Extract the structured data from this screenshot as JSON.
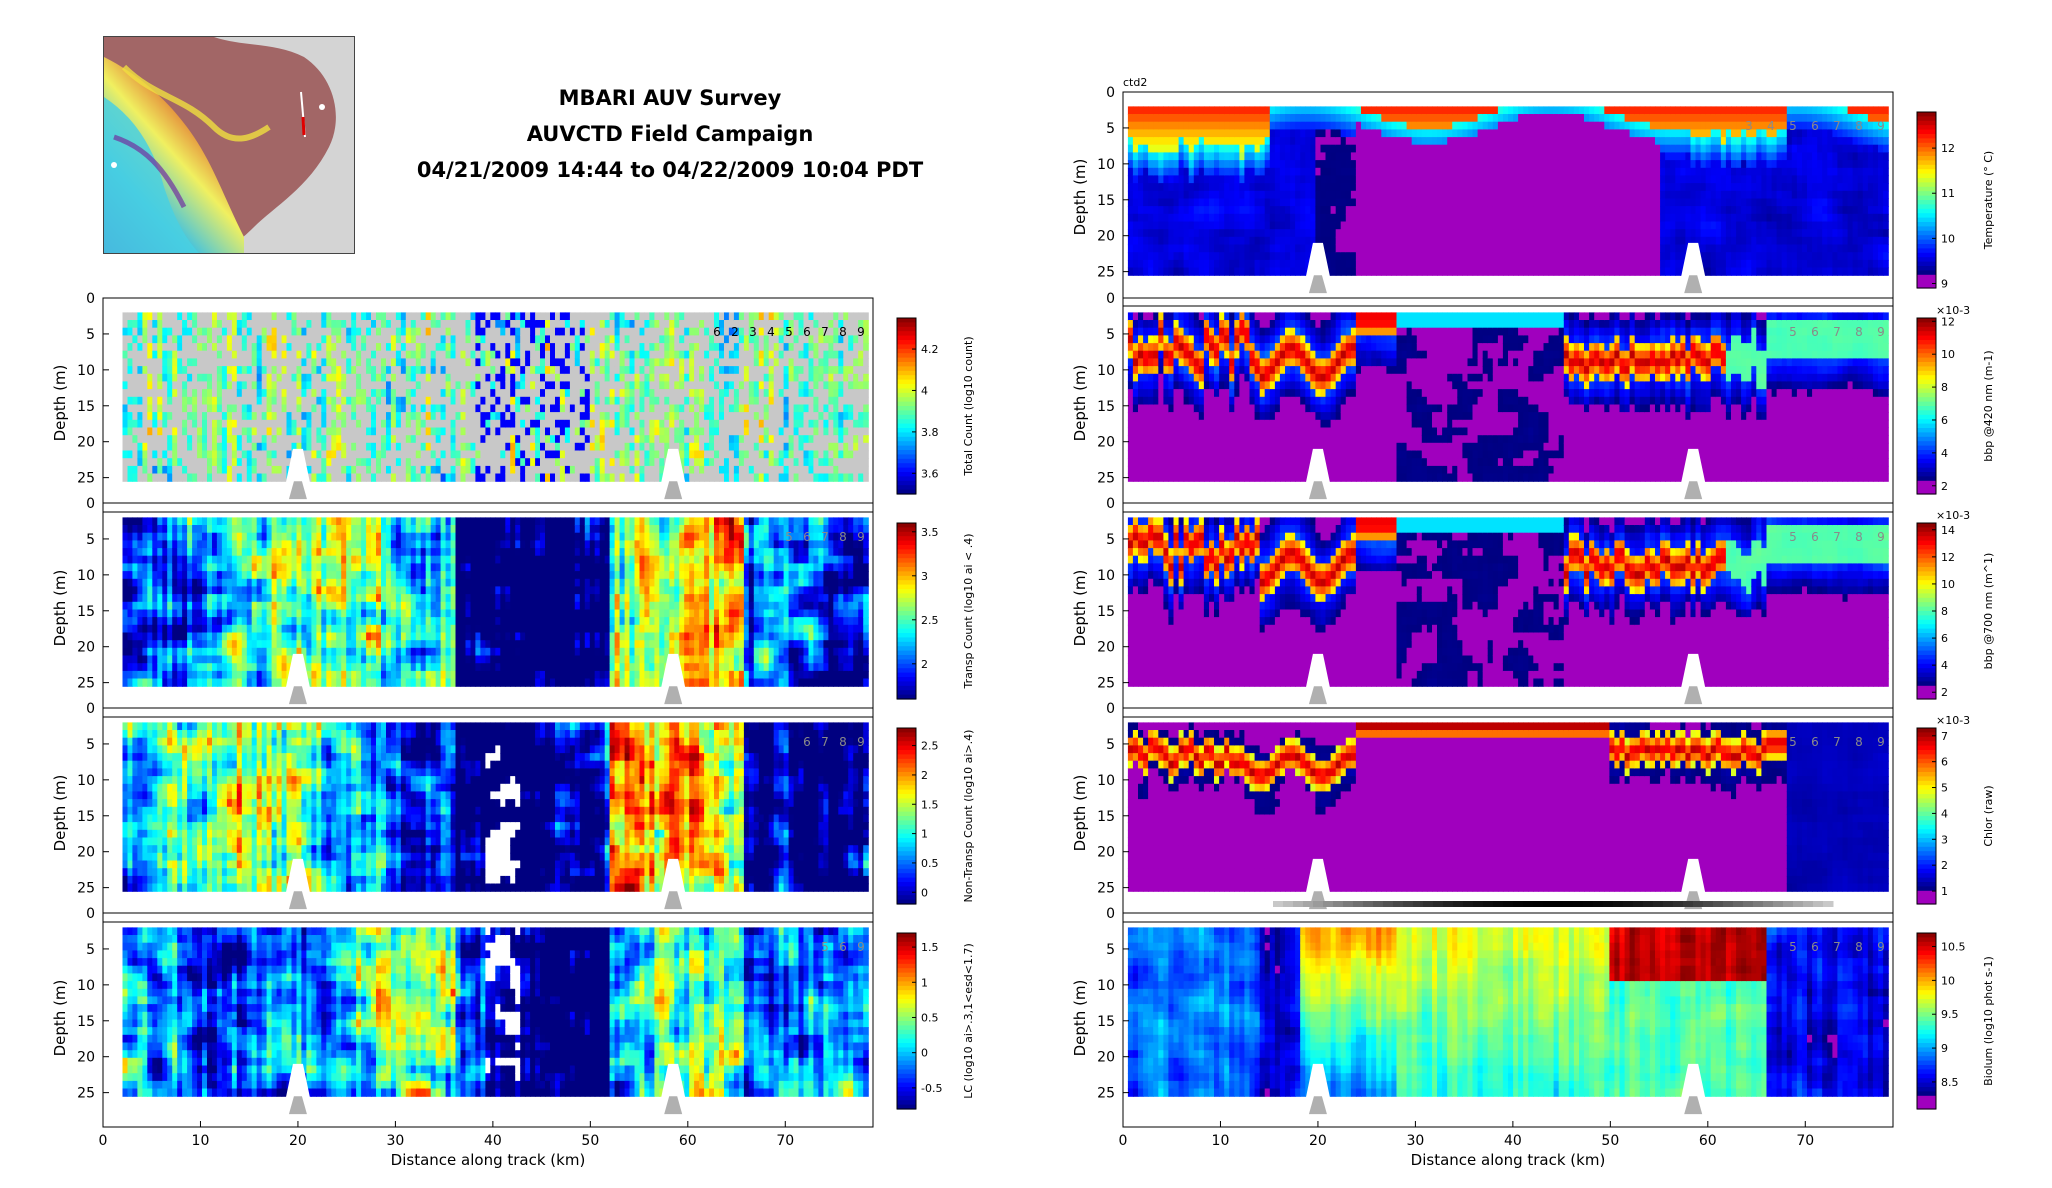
{
  "title": {
    "line1": "MBARI AUV Survey",
    "line2": "AUVCTD Field Campaign",
    "line3": "04/21/2009 14:44 to 04/22/2009 10:04 PDT"
  },
  "inset_map": {
    "present": true,
    "colormap": "terrain/bathymetry relief",
    "track_color": "#e00000"
  },
  "colors": {
    "section_bg": "#ffffff",
    "seafloor": "#b0b0b0",
    "grid_gray": "#bdbdbd"
  },
  "chart_data": [
    {
      "id": "total_count",
      "type": "heatmap",
      "column": "left",
      "row": 1,
      "xlabel": "",
      "ylabel": "Depth (m)",
      "xlim": [
        0,
        79
      ],
      "ylim": [
        27,
        0
      ],
      "yticks": [
        0,
        5,
        10,
        15,
        20,
        25
      ],
      "xticks": [],
      "colorbar": {
        "label": "Total Count (log10 count)",
        "ticks": [
          "3.6",
          "3.8",
          "4",
          "4.2"
        ],
        "range": [
          3.5,
          4.35
        ],
        "scale": "",
        "colormap": "jet"
      },
      "markers": [
        "6",
        "2",
        "3",
        "4",
        "5",
        "6",
        "7",
        "8",
        "9"
      ],
      "pattern": "sparse",
      "seed": 11
    },
    {
      "id": "transp_count",
      "type": "heatmap",
      "column": "left",
      "row": 2,
      "xlabel": "",
      "ylabel": "Depth (m)",
      "xlim": [
        0,
        79
      ],
      "ylim": [
        27,
        0
      ],
      "yticks": [
        0,
        5,
        10,
        15,
        20,
        25
      ],
      "xticks": [],
      "colorbar": {
        "label": "Transp Count (log10 ai < .4)",
        "ticks": [
          "2",
          "2.5",
          "3",
          "3.5"
        ],
        "range": [
          1.6,
          3.6
        ],
        "scale": "",
        "colormap": "jet"
      },
      "markers": [
        "5",
        "6",
        "7",
        "8",
        "9"
      ],
      "pattern": "patchy",
      "seed": 23
    },
    {
      "id": "nontransp_count",
      "type": "heatmap",
      "column": "left",
      "row": 3,
      "xlabel": "",
      "ylabel": "Depth (m)",
      "xlim": [
        0,
        79
      ],
      "ylim": [
        27,
        0
      ],
      "yticks": [
        0,
        5,
        10,
        15,
        20,
        25
      ],
      "xticks": [],
      "colorbar": {
        "label": "Non-Transp Count (log10 ai>.4)",
        "ticks": [
          "0",
          "0.5",
          "1",
          "1.5",
          "2",
          "2.5"
        ],
        "range": [
          -0.2,
          2.8
        ],
        "scale": "",
        "colormap": "jet"
      },
      "markers": [
        "6",
        "7",
        "8",
        "9"
      ],
      "pattern": "patchy",
      "seed": 37
    },
    {
      "id": "lc",
      "type": "heatmap",
      "column": "left",
      "row": 4,
      "xlabel": "Distance along track (km)",
      "ylabel": "Depth (m)",
      "xlim": [
        0,
        79
      ],
      "ylim": [
        27,
        0
      ],
      "yticks": [
        0,
        5,
        10,
        15,
        20,
        25
      ],
      "xticks": [
        0,
        10,
        20,
        30,
        40,
        50,
        60,
        70
      ],
      "colorbar": {
        "label": "LC (log10 ai>.3,1<esd<1.7)",
        "ticks": [
          "-0.5",
          "0",
          "0.5",
          "1",
          "1.5"
        ],
        "range": [
          -0.8,
          1.7
        ],
        "scale": "",
        "colormap": "jet"
      },
      "markers": [
        "5",
        "6",
        "9"
      ],
      "pattern": "patchy",
      "seed": 53
    },
    {
      "id": "temperature",
      "type": "heatmap",
      "column": "right",
      "row": 0,
      "xlabel": "",
      "ylabel": "Depth (m)",
      "corner_label": "ctd2",
      "xlim": [
        0,
        79
      ],
      "ylim": [
        27,
        0
      ],
      "yticks": [
        0,
        5,
        10,
        15,
        20,
        25
      ],
      "xticks": [],
      "colorbar": {
        "label": "Temperature (° C)",
        "ticks": [
          "9",
          "10",
          "11",
          "12"
        ],
        "range": [
          8.9,
          12.8
        ],
        "scale": "",
        "colormap": "jet"
      },
      "markers": [
        "3",
        "4",
        "5",
        "6",
        "7",
        "8",
        "9"
      ],
      "pattern": "surface_warm",
      "seed": 71
    },
    {
      "id": "bbp420",
      "type": "heatmap",
      "column": "right",
      "row": 1,
      "xlabel": "",
      "ylabel": "Depth (m)",
      "xlim": [
        0,
        79
      ],
      "ylim": [
        27,
        0
      ],
      "yticks": [
        0,
        5,
        10,
        15,
        20,
        25
      ],
      "xticks": [],
      "colorbar": {
        "label": "bbp @420 nm (m-1)",
        "ticks": [
          "2",
          "4",
          "6",
          "8",
          "10",
          "12"
        ],
        "range": [
          1.5,
          12.2
        ],
        "scale": "×10-3",
        "colormap": "jet"
      },
      "markers": [
        "5",
        "6",
        "7",
        "8",
        "9"
      ],
      "pattern": "layer",
      "seed": 83
    },
    {
      "id": "bbp700",
      "type": "heatmap",
      "column": "right",
      "row": 2,
      "xlabel": "",
      "ylabel": "Depth (m)",
      "xlim": [
        0,
        79
      ],
      "ylim": [
        27,
        0
      ],
      "yticks": [
        0,
        5,
        10,
        15,
        20,
        25
      ],
      "xticks": [],
      "colorbar": {
        "label": "bbp @700 nm (m^1)",
        "ticks": [
          "2",
          "4",
          "6",
          "8",
          "10",
          "12",
          "14"
        ],
        "range": [
          1.5,
          14.5
        ],
        "scale": "×10-3",
        "colormap": "jet"
      },
      "markers": [
        "5",
        "6",
        "7",
        "8",
        "9"
      ],
      "pattern": "layer",
      "seed": 97
    },
    {
      "id": "chlor",
      "type": "heatmap",
      "column": "right",
      "row": 3,
      "xlabel": "",
      "ylabel": "Depth (m)",
      "xlim": [
        0,
        79
      ],
      "ylim": [
        27,
        0
      ],
      "yticks": [
        0,
        5,
        10,
        15,
        20,
        25
      ],
      "xticks": [],
      "colorbar": {
        "label": "Chlor (raw)",
        "ticks": [
          "1",
          "2",
          "3",
          "4",
          "5",
          "6",
          "7"
        ],
        "range": [
          0.5,
          7.3
        ],
        "scale": "×10-3",
        "colormap": "jet"
      },
      "markers": [
        "5",
        "6",
        "7",
        "8",
        "9"
      ],
      "pattern": "surface_layer",
      "seed": 109
    },
    {
      "id": "biolum",
      "type": "heatmap",
      "column": "right",
      "row": 4,
      "xlabel": "Distance along track (km)",
      "ylabel": "Depth (m)",
      "xlim": [
        0,
        79
      ],
      "ylim": [
        27,
        0
      ],
      "yticks": [
        0,
        5,
        10,
        15,
        20,
        25
      ],
      "xticks": [
        0,
        10,
        20,
        30,
        40,
        50,
        60,
        70
      ],
      "colorbar": {
        "label": "Biolum (log10 phot s-1)",
        "ticks": [
          "8.5",
          "9",
          "9.5",
          "10",
          "10.5"
        ],
        "range": [
          8.1,
          10.7
        ],
        "scale": "",
        "colormap": "jet"
      },
      "markers": [
        "5",
        "6",
        "7",
        "8",
        "9"
      ],
      "pattern": "biolum",
      "seed": 131
    }
  ]
}
